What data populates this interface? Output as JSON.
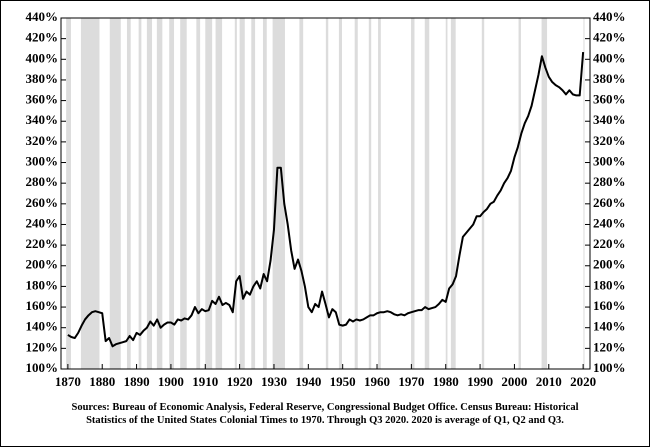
{
  "chart_data": {
    "type": "line",
    "source": [
      "Sources: Bureau of Economic Analysis, Federal Reserve, Congressional Budget Office. Census Bureau: Historical",
      "Statistics of the United States Colonial Times to 1970.  Through Q3 2020. 2020 is average of Q1, Q2 and Q3."
    ],
    "xlim": [
      1868,
      2022
    ],
    "xticks": [
      1870,
      1880,
      1890,
      1900,
      1910,
      1920,
      1930,
      1940,
      1950,
      1960,
      1970,
      1980,
      1990,
      2000,
      2010,
      2020
    ],
    "ylim": [
      100,
      440
    ],
    "yticks": [
      {
        "value": 100,
        "label": "100%"
      },
      {
        "value": 120,
        "label": "120%"
      },
      {
        "value": 140,
        "label": "140%"
      },
      {
        "value": 160,
        "label": "160%"
      },
      {
        "value": 180,
        "label": "180%"
      },
      {
        "value": 200,
        "label": "200%"
      },
      {
        "value": 220,
        "label": "220%"
      },
      {
        "value": 240,
        "label": "240%"
      },
      {
        "value": 260,
        "label": "260%"
      },
      {
        "value": 280,
        "label": "280%"
      },
      {
        "value": 300,
        "label": "300%"
      },
      {
        "value": 320,
        "label": "320%"
      },
      {
        "value": 340,
        "label": "340%"
      },
      {
        "value": 360,
        "label": "360%"
      },
      {
        "value": 380,
        "label": "380%"
      },
      {
        "value": 400,
        "label": "400%"
      },
      {
        "value": 420,
        "label": "420%"
      },
      {
        "value": 440,
        "label": "440%"
      }
    ],
    "y2lim": [
      100,
      440
    ],
    "y2ticks": [
      {
        "value": 100,
        "label": "100%"
      },
      {
        "value": 120,
        "label": "120%"
      },
      {
        "value": 140,
        "label": "140%"
      },
      {
        "value": 160,
        "label": "160%"
      },
      {
        "value": 180,
        "label": "180%"
      },
      {
        "value": 200,
        "label": "200%"
      },
      {
        "value": 220,
        "label": "220%"
      },
      {
        "value": 240,
        "label": "240%"
      },
      {
        "value": 260,
        "label": "260%"
      },
      {
        "value": 280,
        "label": "280%"
      },
      {
        "value": 300,
        "label": "300%"
      },
      {
        "value": 320,
        "label": "320%"
      },
      {
        "value": 340,
        "label": "340%"
      },
      {
        "value": 360,
        "label": "360%"
      },
      {
        "value": 380,
        "label": "380%"
      },
      {
        "value": 400,
        "label": "400%"
      },
      {
        "value": 420,
        "label": "420%"
      },
      {
        "value": 440,
        "label": "440%"
      }
    ],
    "recession_color": "#dcdcdc",
    "recessions": [
      [
        1869.5,
        1870.9
      ],
      [
        1873.8,
        1879.2
      ],
      [
        1882.2,
        1885.4
      ],
      [
        1887.2,
        1888.3
      ],
      [
        1890.6,
        1891.4
      ],
      [
        1893.0,
        1894.5
      ],
      [
        1895.9,
        1897.5
      ],
      [
        1899.5,
        1900.9
      ],
      [
        1902.7,
        1904.6
      ],
      [
        1907.4,
        1908.5
      ],
      [
        1910.0,
        1912.0
      ],
      [
        1913.0,
        1914.9
      ],
      [
        1918.6,
        1919.2
      ],
      [
        1920.0,
        1921.5
      ],
      [
        1923.4,
        1924.5
      ],
      [
        1926.8,
        1927.9
      ],
      [
        1929.6,
        1933.2
      ],
      [
        1937.4,
        1938.5
      ],
      [
        1945.1,
        1945.8
      ],
      [
        1948.9,
        1949.8
      ],
      [
        1953.5,
        1954.4
      ],
      [
        1957.6,
        1958.3
      ],
      [
        1960.3,
        1961.1
      ],
      [
        1969.9,
        1970.9
      ],
      [
        1973.9,
        1975.2
      ],
      [
        1980.0,
        1980.5
      ],
      [
        1981.5,
        1982.9
      ],
      [
        1990.5,
        1991.2
      ],
      [
        2001.2,
        2001.9
      ],
      [
        2007.9,
        2009.5
      ],
      [
        2020.1,
        2020.4
      ]
    ],
    "x": [
      1870,
      1871,
      1872,
      1873,
      1874,
      1875,
      1876,
      1877,
      1878,
      1879,
      1880,
      1881,
      1882,
      1883,
      1884,
      1885,
      1886,
      1887,
      1888,
      1889,
      1890,
      1891,
      1892,
      1893,
      1894,
      1895,
      1896,
      1897,
      1898,
      1899,
      1900,
      1901,
      1902,
      1903,
      1904,
      1905,
      1906,
      1907,
      1908,
      1909,
      1910,
      1911,
      1912,
      1913,
      1914,
      1915,
      1916,
      1917,
      1918,
      1919,
      1920,
      1921,
      1922,
      1923,
      1924,
      1925,
      1926,
      1927,
      1928,
      1929,
      1930,
      1931,
      1932,
      1933,
      1934,
      1935,
      1936,
      1937,
      1938,
      1939,
      1940,
      1941,
      1942,
      1943,
      1944,
      1945,
      1946,
      1947,
      1948,
      1949,
      1950,
      1951,
      1952,
      1953,
      1954,
      1955,
      1956,
      1957,
      1958,
      1959,
      1960,
      1961,
      1962,
      1963,
      1964,
      1965,
      1966,
      1967,
      1968,
      1969,
      1970,
      1971,
      1972,
      1973,
      1974,
      1975,
      1976,
      1977,
      1978,
      1979,
      1980,
      1981,
      1982,
      1983,
      1984,
      1985,
      1986,
      1987,
      1988,
      1989,
      1990,
      1991,
      1992,
      1993,
      1994,
      1995,
      1996,
      1997,
      1998,
      1999,
      2000,
      2001,
      2002,
      2003,
      2004,
      2005,
      2006,
      2007,
      2008,
      2009,
      2010,
      2011,
      2012,
      2013,
      2014,
      2015,
      2016,
      2017,
      2018,
      2019,
      2020
    ],
    "series": [
      {
        "color": "#000000",
        "values": [
          133,
          131,
          130,
          135,
          142,
          148,
          152,
          155,
          156,
          155,
          154,
          127,
          130,
          122,
          124,
          125,
          126,
          127,
          132,
          128,
          135,
          133,
          137,
          140,
          146,
          142,
          148,
          140,
          143,
          145,
          145,
          143,
          148,
          147,
          149,
          148,
          152,
          160,
          154,
          158,
          156,
          157,
          166,
          163,
          170,
          162,
          164,
          162,
          155,
          185,
          190,
          168,
          175,
          172,
          180,
          185,
          178,
          192,
          185,
          205,
          235,
          295,
          295,
          260,
          240,
          215,
          197,
          206,
          195,
          180,
          160,
          155,
          163,
          160,
          175,
          163,
          150,
          158,
          155,
          143,
          142,
          143,
          148,
          146,
          148,
          147,
          148,
          150,
          152,
          152,
          154,
          155,
          155,
          156,
          155,
          153,
          152,
          153,
          152,
          154,
          155,
          156,
          157,
          157,
          160,
          158,
          159,
          160,
          163,
          167,
          165,
          178,
          182,
          190,
          210,
          228,
          232,
          236,
          240,
          248,
          248,
          252,
          255,
          260,
          262,
          268,
          273,
          280,
          285,
          292,
          305,
          315,
          328,
          338,
          345,
          355,
          370,
          385,
          403,
          392,
          383,
          378,
          375,
          373,
          370,
          366,
          370,
          366,
          365,
          365,
          407
        ]
      }
    ]
  }
}
